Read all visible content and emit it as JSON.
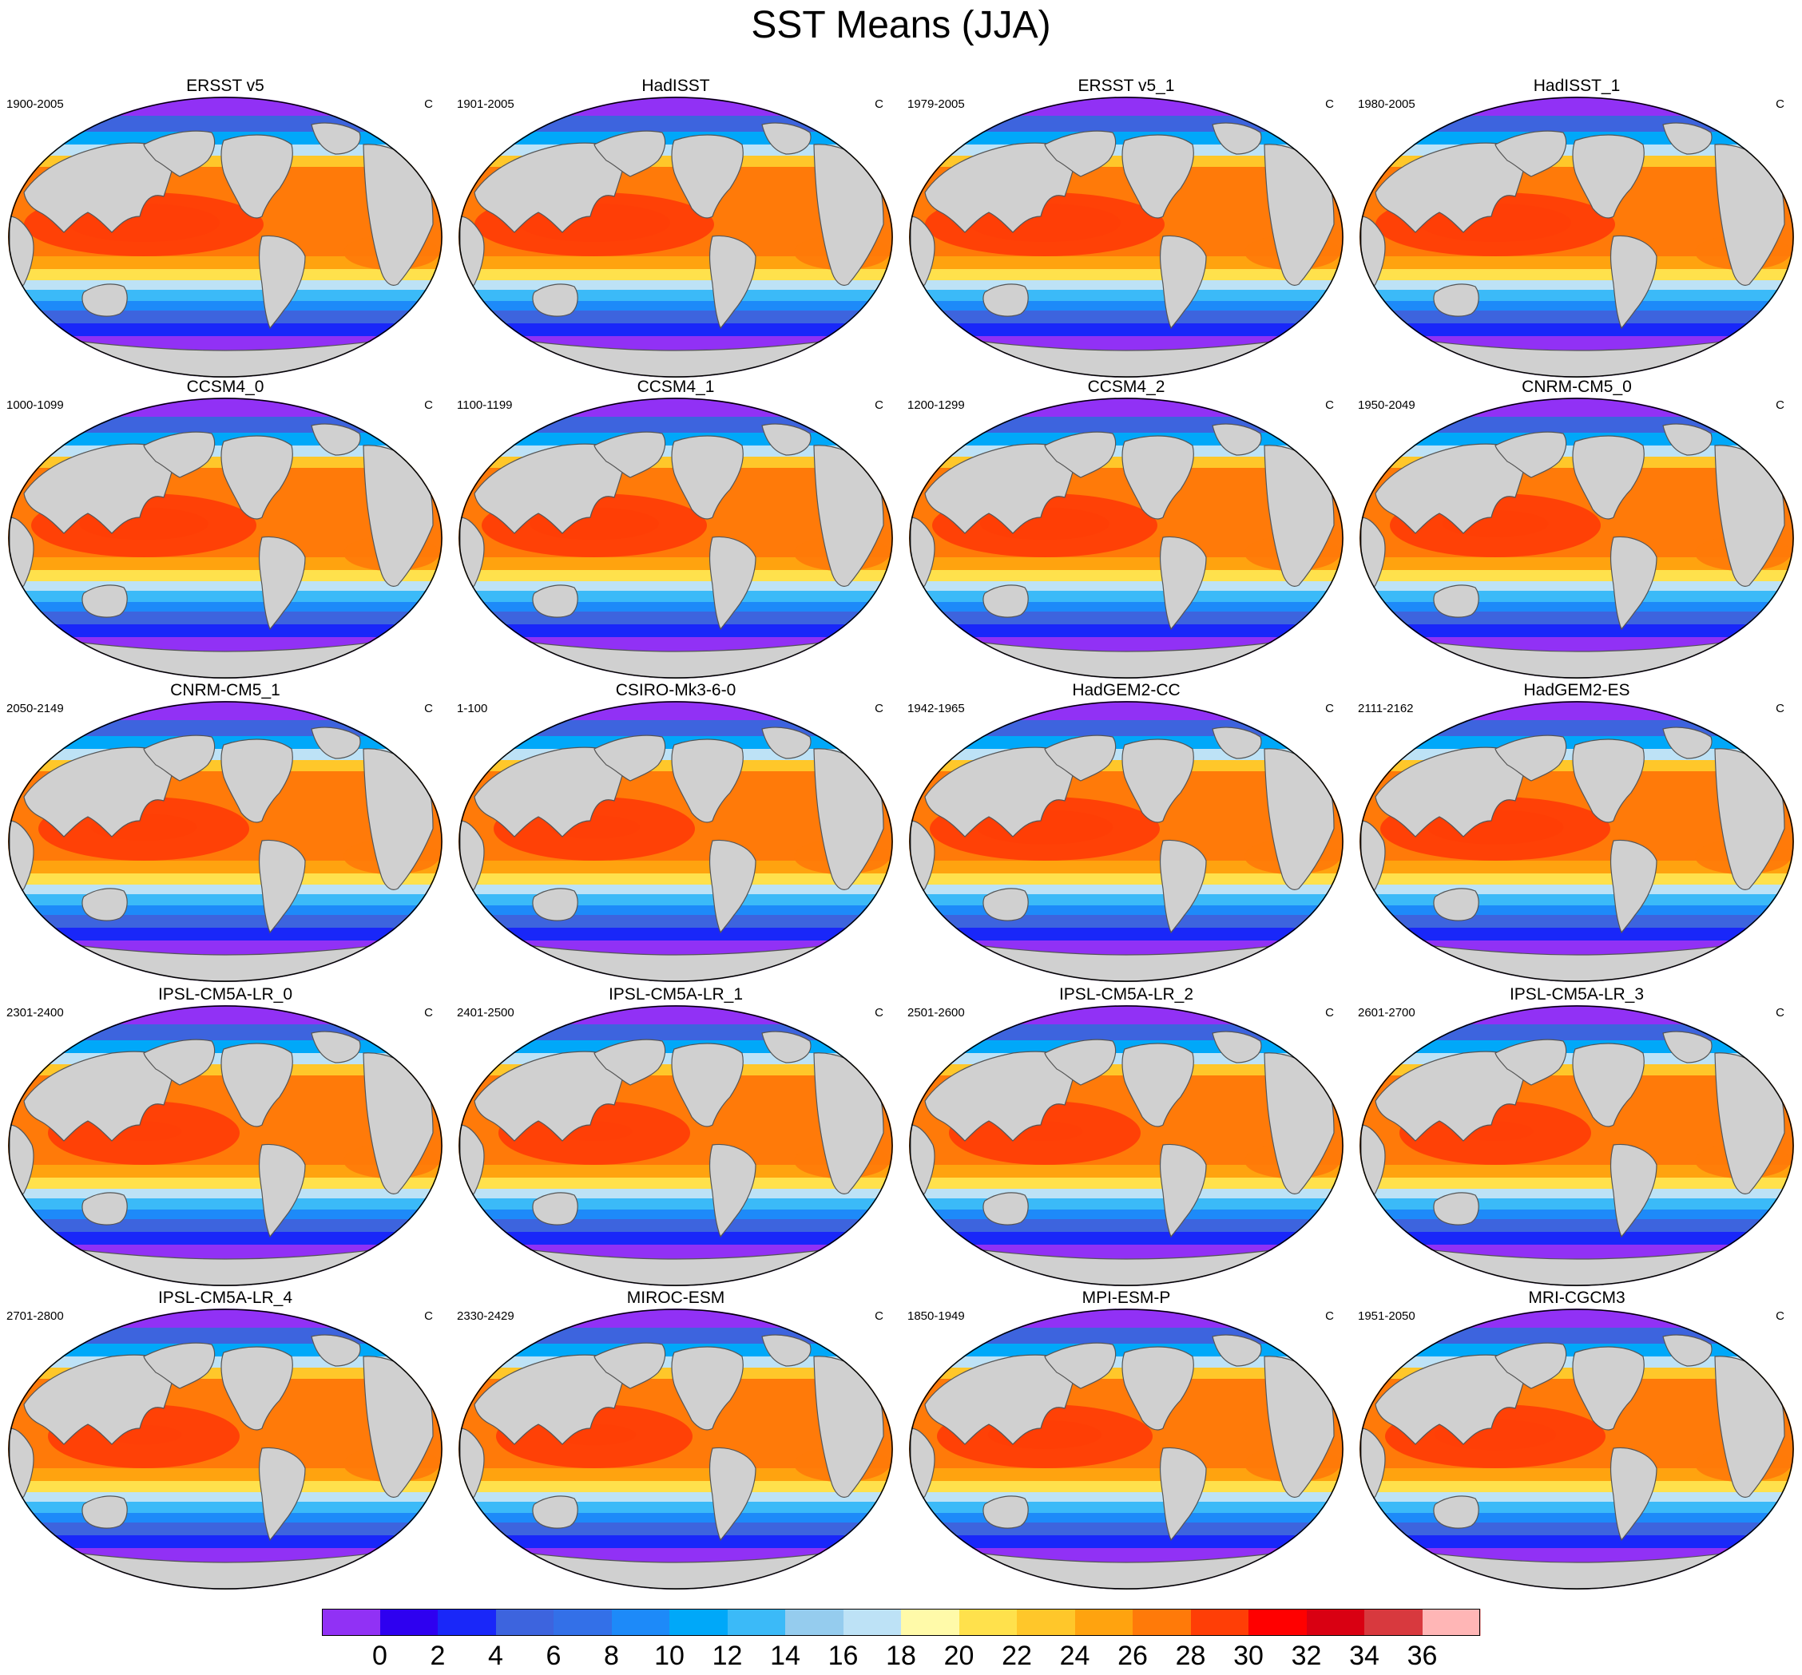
{
  "title": "SST Means (JJA)",
  "panels": [
    {
      "name": "ERSST v5",
      "years": "1900-2005",
      "units": "C",
      "warm": 1.0
    },
    {
      "name": "HadISST",
      "years": "1901-2005",
      "units": "C",
      "warm": 1.0
    },
    {
      "name": "ERSST v5_1",
      "years": "1979-2005",
      "units": "C",
      "warm": 1.0
    },
    {
      "name": "HadISST_1",
      "years": "1980-2005",
      "units": "C",
      "warm": 1.0
    },
    {
      "name": "CCSM4_0",
      "years": "1000-1099",
      "units": "C",
      "warm": 0.85
    },
    {
      "name": "CCSM4_1",
      "years": "1100-1199",
      "units": "C",
      "warm": 0.85
    },
    {
      "name": "CCSM4_2",
      "years": "1200-1299",
      "units": "C",
      "warm": 0.85
    },
    {
      "name": "CNRM-CM5_0",
      "years": "1950-2049",
      "units": "C",
      "warm": 0.7
    },
    {
      "name": "CNRM-CM5_1",
      "years": "2050-2149",
      "units": "C",
      "warm": 0.7
    },
    {
      "name": "CSIRO-Mk3-6-0",
      "years": "1-100",
      "units": "C",
      "warm": 0.6
    },
    {
      "name": "HadGEM2-CC",
      "years": "1942-1965",
      "units": "C",
      "warm": 0.9
    },
    {
      "name": "HadGEM2-ES",
      "years": "2111-2162",
      "units": "C",
      "warm": 0.9
    },
    {
      "name": "IPSL-CM5A-LR_0",
      "years": "2301-2400",
      "units": "C",
      "warm": 0.5
    },
    {
      "name": "IPSL-CM5A-LR_1",
      "years": "2401-2500",
      "units": "C",
      "warm": 0.5
    },
    {
      "name": "IPSL-CM5A-LR_2",
      "years": "2501-2600",
      "units": "C",
      "warm": 0.5
    },
    {
      "name": "IPSL-CM5A-LR_3",
      "years": "2601-2700",
      "units": "C",
      "warm": 0.5
    },
    {
      "name": "IPSL-CM5A-LR_4",
      "years": "2701-2800",
      "units": "C",
      "warm": 0.5
    },
    {
      "name": "MIROC-ESM",
      "years": "2330-2429",
      "units": "C",
      "warm": 0.55
    },
    {
      "name": "MPI-ESM-P",
      "years": "1850-1949",
      "units": "C",
      "warm": 0.75
    },
    {
      "name": "MRI-CGCM3",
      "years": "1951-2050",
      "units": "C",
      "warm": 0.8
    }
  ],
  "colorbar": {
    "colors": [
      "#9131f5",
      "#2e00f0",
      "#1927f9",
      "#3d64de",
      "#3370e8",
      "#1d8af9",
      "#00a8f9",
      "#3bbaf8",
      "#95ccee",
      "#bde2f6",
      "#fffaa9",
      "#ffe14c",
      "#ffc72a",
      "#ffa30f",
      "#ff7a09",
      "#ff3e06",
      "#ff0000",
      "#d90012",
      "#d8393e",
      "#ffb6b6"
    ],
    "labels": [
      "0",
      "2",
      "4",
      "6",
      "8",
      "10",
      "12",
      "14",
      "16",
      "18",
      "20",
      "22",
      "24",
      "26",
      "28",
      "30",
      "32",
      "34",
      "36"
    ]
  }
}
